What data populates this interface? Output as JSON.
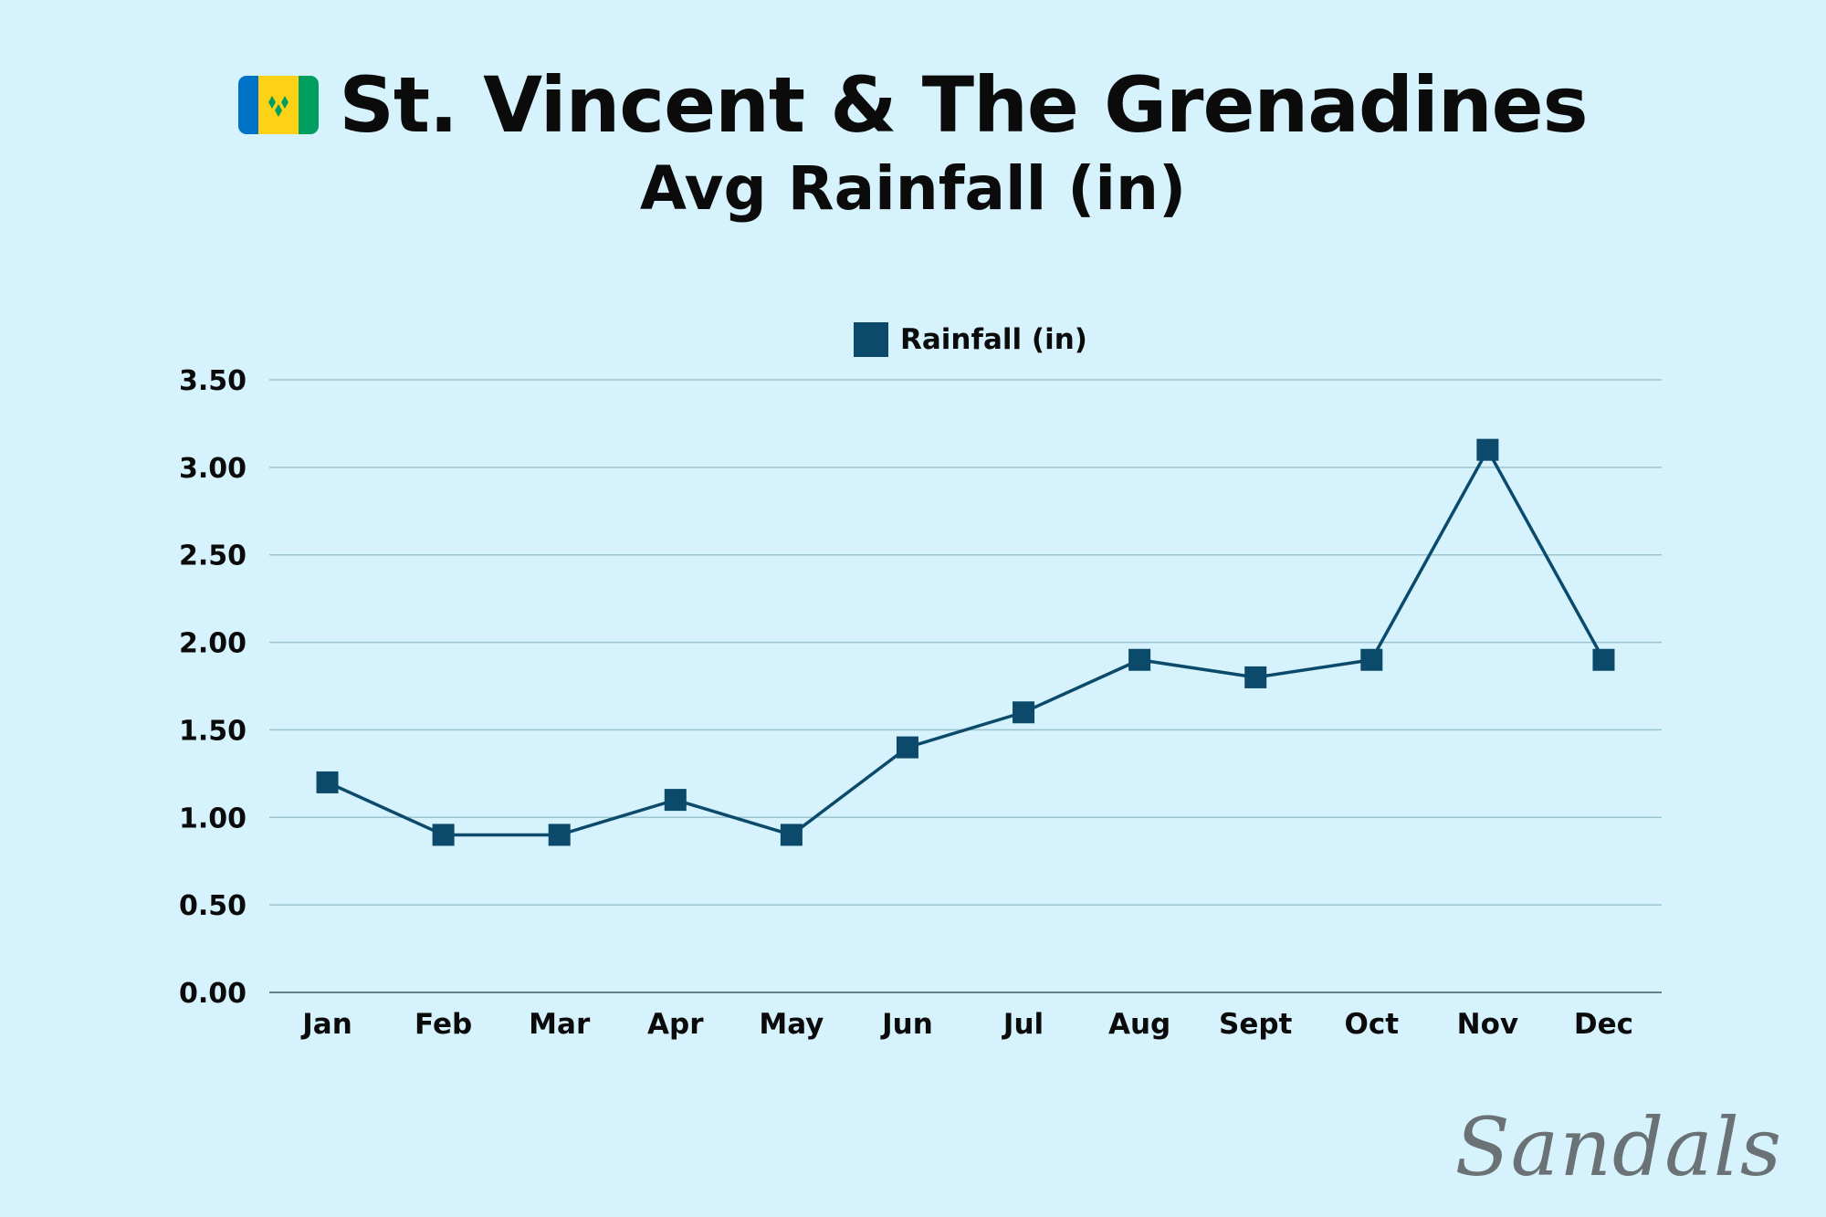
{
  "header": {
    "title": "St. Vincent & The Grenadines",
    "subtitle": "Avg Rainfall (in)"
  },
  "flag": {
    "colors": [
      "#0072c6",
      "#fcd116",
      "#009e60"
    ],
    "diamond_color": "#009e60"
  },
  "brand": {
    "logo_text": "Sandals"
  },
  "colors": {
    "background": "#d5f2fd",
    "series": "#0b4a6b",
    "grid": "#9cc4cf",
    "axis": "#3d5a66"
  },
  "chart_data": {
    "type": "line",
    "title": "Avg Rainfall (in)",
    "xlabel": "",
    "ylabel": "",
    "categories": [
      "Jan",
      "Feb",
      "Mar",
      "Apr",
      "May",
      "Jun",
      "Jul",
      "Aug",
      "Sept",
      "Oct",
      "Nov",
      "Dec"
    ],
    "series": [
      {
        "name": "Rainfall (in)",
        "values": [
          1.2,
          0.9,
          0.9,
          1.1,
          0.9,
          1.4,
          1.6,
          1.9,
          1.8,
          1.9,
          3.1,
          1.9
        ]
      }
    ],
    "yticks": [
      "0.00",
      "0.50",
      "1.00",
      "1.50",
      "2.00",
      "2.50",
      "3.00",
      "3.50"
    ],
    "ylim": [
      0,
      3.5
    ],
    "grid": true,
    "legend": "top-center",
    "marker": "square"
  }
}
